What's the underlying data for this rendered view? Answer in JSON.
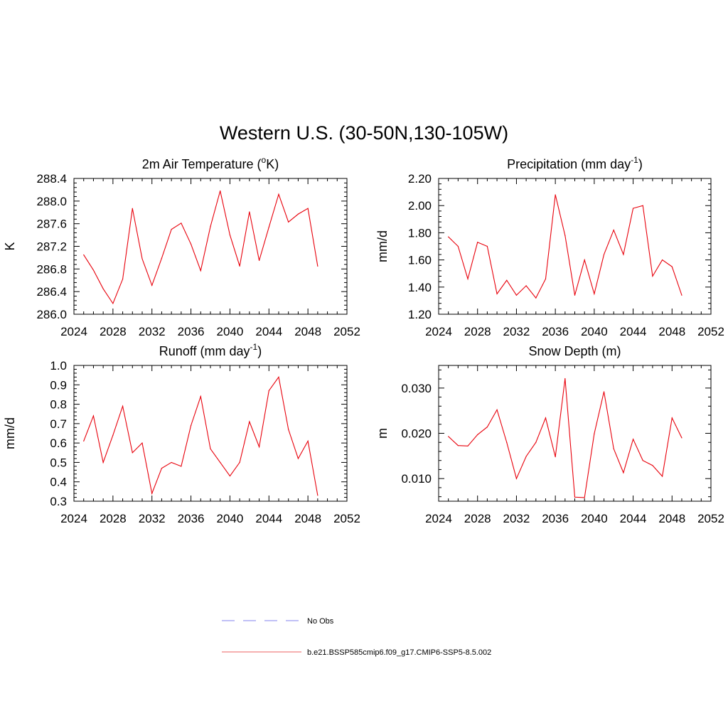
{
  "title": "Western U.S. (30-50N,130-105W)",
  "colors": {
    "model": "#e8000b",
    "obs": "#9a9af0"
  },
  "legend": {
    "entries": [
      {
        "label": "No Obs",
        "style": "dashed",
        "color": "#9a9af0"
      },
      {
        "label": "b.e21.BSSP585cmip6.f09_g17.CMIP6-SSP5-8.5.002",
        "style": "solid",
        "color": "#f08080"
      }
    ]
  },
  "chart_data": [
    {
      "type": "line",
      "title": "2m Air Temperature (",
      "title_unit": "o",
      "title_suffix": "K)",
      "ylabel": "K",
      "xlim": [
        2024,
        2052
      ],
      "ylim": [
        286.0,
        288.4
      ],
      "xticks": [
        2024,
        2028,
        2032,
        2036,
        2040,
        2044,
        2048,
        2052
      ],
      "yticks": [
        286.0,
        286.4,
        286.8,
        287.2,
        287.6,
        288.0,
        288.4
      ],
      "ytick_labels": [
        "286.0",
        "286.4",
        "286.8",
        "287.2",
        "287.6",
        "288.0",
        "288.4"
      ],
      "series": [
        {
          "x": [
            2025,
            2026,
            2027,
            2028,
            2029,
            2030,
            2031,
            2032,
            2033,
            2034,
            2035,
            2036,
            2037,
            2038,
            2039,
            2040,
            2041,
            2042,
            2043,
            2044,
            2045,
            2046,
            2047,
            2048,
            2049
          ],
          "values": [
            287.05,
            286.78,
            286.45,
            286.19,
            286.62,
            287.87,
            286.98,
            286.51,
            286.99,
            287.5,
            287.61,
            287.24,
            286.77,
            287.55,
            288.18,
            287.4,
            286.85,
            287.81,
            286.95,
            287.54,
            288.12,
            287.63,
            287.77,
            287.87,
            286.85
          ]
        }
      ]
    },
    {
      "type": "line",
      "title": "Precipitation (mm day",
      "title_unit": "-1",
      "title_suffix": ")",
      "ylabel": "mm/d",
      "xlim": [
        2024,
        2052
      ],
      "ylim": [
        1.2,
        2.2
      ],
      "xticks": [
        2024,
        2028,
        2032,
        2036,
        2040,
        2044,
        2048,
        2052
      ],
      "yticks": [
        1.2,
        1.4,
        1.6,
        1.8,
        2.0,
        2.2
      ],
      "ytick_labels": [
        "1.20",
        "1.40",
        "1.60",
        "1.80",
        "2.00",
        "2.20"
      ],
      "series": [
        {
          "x": [
            2025,
            2026,
            2027,
            2028,
            2029,
            2030,
            2031,
            2032,
            2033,
            2034,
            2035,
            2036,
            2037,
            2038,
            2039,
            2040,
            2041,
            2042,
            2043,
            2044,
            2045,
            2046,
            2047,
            2048,
            2049
          ],
          "values": [
            1.77,
            1.7,
            1.46,
            1.73,
            1.7,
            1.35,
            1.45,
            1.34,
            1.41,
            1.32,
            1.46,
            2.08,
            1.78,
            1.34,
            1.6,
            1.35,
            1.64,
            1.82,
            1.64,
            1.98,
            2.0,
            1.48,
            1.6,
            1.55,
            1.34
          ]
        }
      ]
    },
    {
      "type": "line",
      "title": "Runoff (mm day",
      "title_unit": "-1",
      "title_suffix": ")",
      "ylabel": "mm/d",
      "xlim": [
        2024,
        2052
      ],
      "ylim": [
        0.3,
        1.0
      ],
      "xticks": [
        2024,
        2028,
        2032,
        2036,
        2040,
        2044,
        2048,
        2052
      ],
      "yticks": [
        0.3,
        0.4,
        0.5,
        0.6,
        0.7,
        0.8,
        0.9,
        1.0
      ],
      "ytick_labels": [
        "0.3",
        "0.4",
        "0.5",
        "0.6",
        "0.7",
        "0.8",
        "0.9",
        "1.0"
      ],
      "series": [
        {
          "x": [
            2025,
            2026,
            2027,
            2028,
            2029,
            2030,
            2031,
            2032,
            2033,
            2034,
            2035,
            2036,
            2037,
            2038,
            2039,
            2040,
            2041,
            2042,
            2043,
            2044,
            2045,
            2046,
            2047,
            2048,
            2049
          ],
          "values": [
            0.61,
            0.74,
            0.5,
            0.64,
            0.79,
            0.55,
            0.6,
            0.34,
            0.47,
            0.5,
            0.48,
            0.69,
            0.84,
            0.57,
            0.5,
            0.43,
            0.5,
            0.71,
            0.58,
            0.87,
            0.94,
            0.67,
            0.52,
            0.61,
            0.33
          ]
        }
      ]
    },
    {
      "type": "line",
      "title": "Snow Depth (m)",
      "title_unit": "",
      "title_suffix": "",
      "ylabel": "m",
      "xlim": [
        2024,
        2052
      ],
      "ylim": [
        0.005,
        0.035
      ],
      "xticks": [
        2024,
        2028,
        2032,
        2036,
        2040,
        2044,
        2048,
        2052
      ],
      "yticks": [
        0.01,
        0.02,
        0.03
      ],
      "ytick_labels": [
        "0.010",
        "0.020",
        "0.030"
      ],
      "series": [
        {
          "x": [
            2025,
            2026,
            2027,
            2028,
            2029,
            2030,
            2031,
            2032,
            2033,
            2034,
            2035,
            2036,
            2037,
            2038,
            2039,
            2040,
            2041,
            2042,
            2043,
            2044,
            2045,
            2046,
            2047,
            2048,
            2049
          ],
          "values": [
            0.0193,
            0.0173,
            0.0172,
            0.0197,
            0.0214,
            0.0252,
            0.018,
            0.01,
            0.0149,
            0.018,
            0.0234,
            0.0148,
            0.0321,
            0.0059,
            0.0058,
            0.0199,
            0.0292,
            0.0166,
            0.0113,
            0.0187,
            0.014,
            0.0129,
            0.0105,
            0.0234,
            0.019
          ]
        }
      ]
    }
  ]
}
